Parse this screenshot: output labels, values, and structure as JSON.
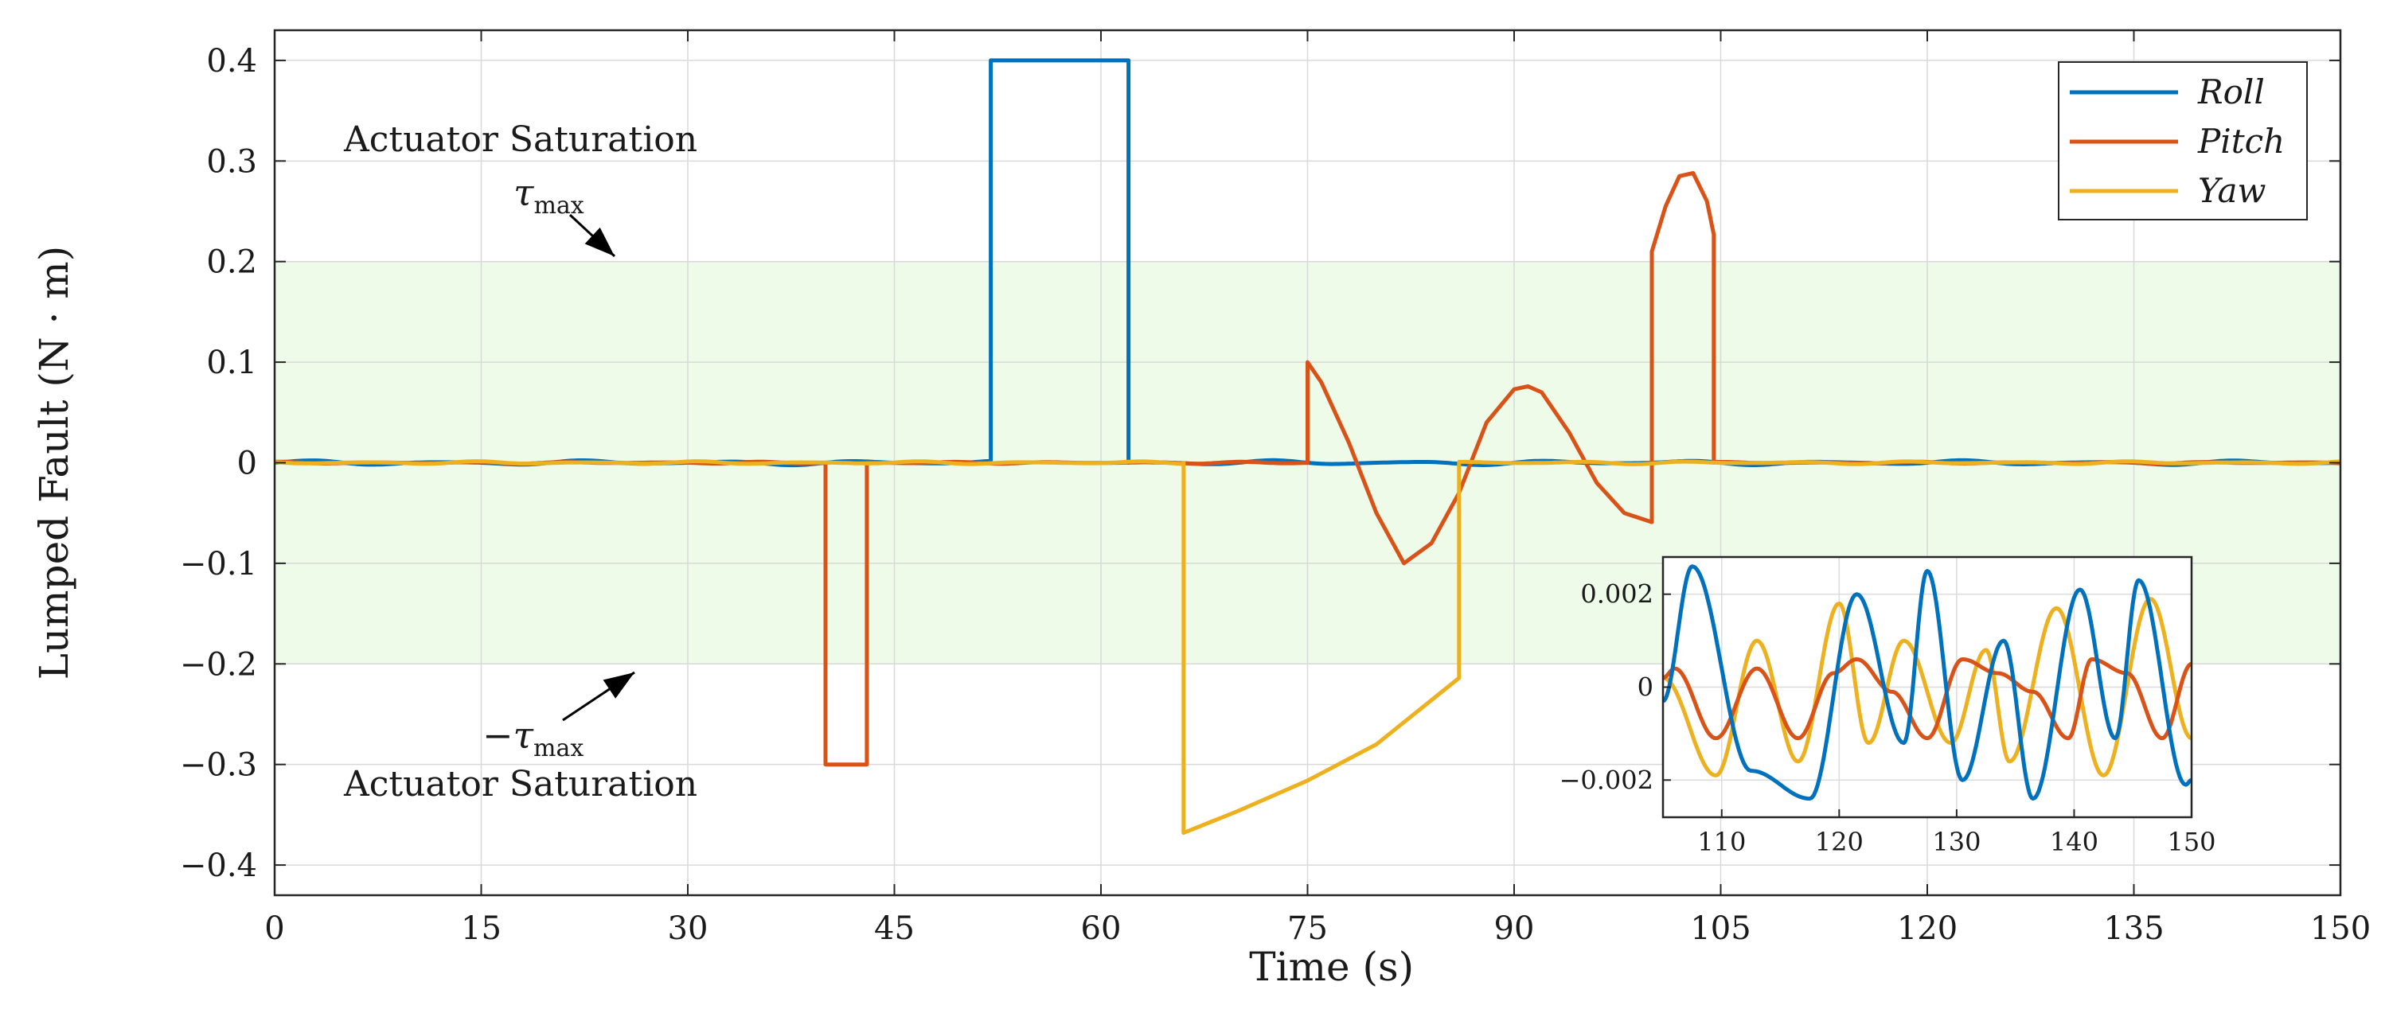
{
  "chart_data": {
    "type": "line",
    "xlabel": "Time (s)",
    "ylabel": "Lumped Fault (N · m)",
    "xlim": [
      0,
      150
    ],
    "ylim": [
      -0.43,
      0.43
    ],
    "xticks": [
      0,
      15,
      30,
      45,
      60,
      75,
      90,
      105,
      120,
      135,
      150
    ],
    "yticks": [
      -0.4,
      -0.3,
      -0.2,
      -0.1,
      0,
      0.1,
      0.2,
      0.3,
      0.4
    ],
    "xtick_labels": [
      "0",
      "15",
      "30",
      "45",
      "60",
      "75",
      "90",
      "105",
      "120",
      "135",
      "150"
    ],
    "ytick_labels": [
      "−0.4",
      "−0.3",
      "−0.2",
      "−0.1",
      "0",
      "0.1",
      "0.2",
      "0.3",
      "0.4"
    ],
    "grid": true,
    "legend_position": "top-right",
    "band": {
      "ymin": -0.2,
      "ymax": 0.2,
      "color": "#eefbe8",
      "meaning": "actuator limits ±τmax"
    },
    "annotations": {
      "upper_text": "Actuator Saturation",
      "upper_symbol": "τ",
      "upper_symbol_sub": "max",
      "lower_text": "Actuator Saturation",
      "lower_symbol": "−τ",
      "lower_symbol_sub": "max"
    },
    "series": [
      {
        "name": "Roll",
        "color": "#0072BD",
        "segments": [
          {
            "kind": "ripple",
            "x0": 0,
            "x1": 52,
            "amp": 0.0025,
            "period": 10
          },
          {
            "kind": "points",
            "x": [
              52,
              52,
              62,
              62
            ],
            "y": [
              0,
              0.4,
              0.4,
              0
            ]
          },
          {
            "kind": "ripple",
            "x0": 62,
            "x1": 150,
            "amp": 0.0025,
            "period": 10
          }
        ]
      },
      {
        "name": "Pitch",
        "color": "#D95319",
        "segments": [
          {
            "kind": "ripple",
            "x0": 0,
            "x1": 40,
            "amp": 0.001,
            "period": 7
          },
          {
            "kind": "points",
            "x": [
              40,
              40,
              43,
              43
            ],
            "y": [
              0,
              -0.3,
              -0.3,
              0
            ]
          },
          {
            "kind": "ripple",
            "x0": 43,
            "x1": 75,
            "amp": 0.001,
            "period": 7
          },
          {
            "kind": "points",
            "x": [
              75,
              75,
              76,
              78,
              80,
              82,
              84,
              86,
              88,
              90,
              91,
              92,
              94,
              96,
              98,
              100,
              100
            ],
            "y": [
              0,
              0.1,
              0.08,
              0.02,
              -0.05,
              -0.1,
              -0.08,
              -0.03,
              0.04,
              0.073,
              0.076,
              0.07,
              0.03,
              -0.02,
              -0.05,
              -0.059,
              0
            ]
          },
          {
            "kind": "points",
            "x": [
              100,
              100,
              101,
              102,
              103,
              104,
              104.5,
              104.5
            ],
            "y": [
              0,
              0.21,
              0.255,
              0.285,
              0.288,
              0.26,
              0.227,
              0
            ]
          },
          {
            "kind": "ripple",
            "x0": 104.5,
            "x1": 150,
            "amp": 0.001,
            "period": 7
          }
        ]
      },
      {
        "name": "Yaw",
        "color": "#EDB120",
        "segments": [
          {
            "kind": "ripple",
            "x0": 0,
            "x1": 66,
            "amp": 0.0015,
            "period": 8
          },
          {
            "kind": "points",
            "x": [
              66,
              66,
              70,
              75,
              80,
              86,
              86
            ],
            "y": [
              0,
              -0.368,
              -0.346,
              -0.316,
              -0.28,
              -0.214,
              0
            ]
          },
          {
            "kind": "ripple",
            "x0": 86,
            "x1": 150,
            "amp": 0.0015,
            "period": 8
          }
        ]
      }
    ],
    "inset": {
      "xlim": [
        105,
        150
      ],
      "ylim": [
        -0.0028,
        0.0028
      ],
      "xticks": [
        110,
        120,
        130,
        140,
        150
      ],
      "yticks": [
        -0.002,
        0,
        0.002
      ],
      "xtick_labels": [
        "110",
        "120",
        "130",
        "140",
        "150"
      ],
      "ytick_labels": [
        "−0.002",
        "0",
        "0.002"
      ],
      "series": [
        {
          "name": "Roll",
          "x": [
            105,
            107.5,
            112.5,
            117.5,
            121.5,
            125.5,
            127.5,
            130.5,
            134,
            136.5,
            140.5,
            143.5,
            145.5,
            149.5,
            150
          ],
          "y": [
            -0.0003,
            0.0026,
            -0.0018,
            -0.0024,
            0.002,
            -0.0012,
            0.0025,
            -0.002,
            0.001,
            -0.0024,
            0.0021,
            -0.0011,
            0.0023,
            -0.0021,
            -0.002
          ]
        },
        {
          "name": "Pitch",
          "x": [
            105,
            106,
            109.5,
            113,
            116.5,
            119.5,
            121.5,
            124.5,
            127.5,
            130.5,
            133.5,
            136.5,
            139.5,
            141.5,
            144.5,
            147.5,
            150
          ],
          "y": [
            0.0002,
            0.0004,
            -0.0011,
            0.0004,
            -0.0011,
            0.0003,
            0.0006,
            -0.0001,
            -0.0011,
            0.0006,
            0.0003,
            -0.0001,
            -0.0011,
            0.0006,
            0.0003,
            -0.0011,
            0.0005
          ]
        },
        {
          "name": "Yaw",
          "x": [
            105,
            109.5,
            113,
            116.5,
            120,
            122.5,
            125.5,
            129.5,
            132.5,
            134.5,
            138.5,
            142.5,
            146.5,
            150
          ],
          "y": [
            0.0002,
            -0.0019,
            0.001,
            -0.0016,
            0.0018,
            -0.0012,
            0.001,
            -0.0012,
            0.0008,
            -0.0016,
            0.0017,
            -0.0019,
            0.0019,
            -0.0011
          ]
        }
      ]
    }
  }
}
